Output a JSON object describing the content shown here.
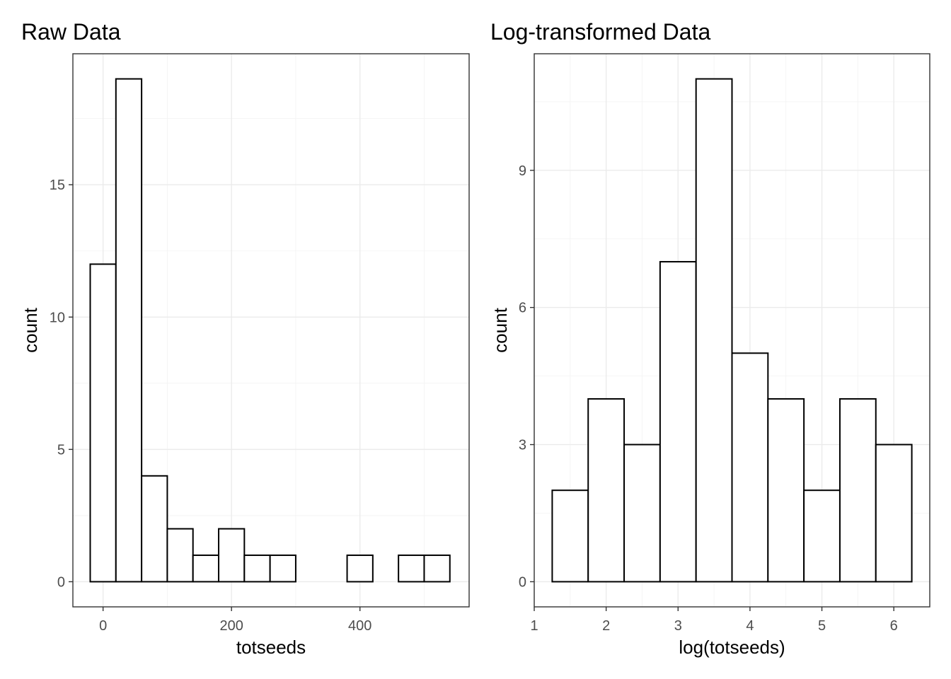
{
  "chart_data": [
    {
      "type": "bar",
      "title": "Raw Data",
      "xlabel": "totseeds",
      "ylabel": "count",
      "bins": [
        {
          "x0": -20,
          "x1": 20,
          "count": 12
        },
        {
          "x0": 20,
          "x1": 60,
          "count": 19
        },
        {
          "x0": 60,
          "x1": 100,
          "count": 4
        },
        {
          "x0": 100,
          "x1": 140,
          "count": 2
        },
        {
          "x0": 140,
          "x1": 180,
          "count": 1
        },
        {
          "x0": 180,
          "x1": 220,
          "count": 2
        },
        {
          "x0": 220,
          "x1": 260,
          "count": 1
        },
        {
          "x0": 260,
          "x1": 300,
          "count": 1
        },
        {
          "x0": 300,
          "x1": 340,
          "count": 0
        },
        {
          "x0": 340,
          "x1": 380,
          "count": 0
        },
        {
          "x0": 380,
          "x1": 420,
          "count": 1
        },
        {
          "x0": 420,
          "x1": 460,
          "count": 0
        },
        {
          "x0": 460,
          "x1": 500,
          "count": 1
        },
        {
          "x0": 500,
          "x1": 540,
          "count": 1
        }
      ],
      "xlim": [
        -47,
        570
      ],
      "ylim": [
        -0.95,
        19.95
      ],
      "xticks": [
        0,
        200,
        400
      ],
      "xtick_labels": [
        "0",
        "200",
        "400"
      ],
      "xminor": [
        100,
        300,
        500
      ],
      "yticks": [
        0,
        5,
        10,
        15
      ],
      "ytick_labels": [
        "0",
        "5",
        "10",
        "15"
      ],
      "yminor": [
        2.5,
        7.5,
        12.5,
        17.5
      ],
      "grid": true
    },
    {
      "type": "bar",
      "title": "Log-transformed Data",
      "xlabel": "log(totseeds)",
      "ylabel": "count",
      "bins": [
        {
          "x0": 1.25,
          "x1": 1.75,
          "count": 2
        },
        {
          "x0": 1.75,
          "x1": 2.25,
          "count": 4
        },
        {
          "x0": 2.25,
          "x1": 2.75,
          "count": 3
        },
        {
          "x0": 2.75,
          "x1": 3.25,
          "count": 7
        },
        {
          "x0": 3.25,
          "x1": 3.75,
          "count": 11
        },
        {
          "x0": 3.75,
          "x1": 4.25,
          "count": 5
        },
        {
          "x0": 4.25,
          "x1": 4.75,
          "count": 4
        },
        {
          "x0": 4.75,
          "x1": 5.25,
          "count": 2
        },
        {
          "x0": 5.25,
          "x1": 5.75,
          "count": 4
        },
        {
          "x0": 5.75,
          "x1": 6.25,
          "count": 3
        }
      ],
      "xlim": [
        1.0,
        6.5
      ],
      "ylim": [
        -0.55,
        11.55
      ],
      "xticks": [
        1,
        2,
        3,
        4,
        5,
        6
      ],
      "xtick_labels": [
        "1",
        "2",
        "3",
        "4",
        "5",
        "6"
      ],
      "xminor": [
        1.5,
        2.5,
        3.5,
        4.5,
        5.5
      ],
      "yticks": [
        0,
        3,
        6,
        9
      ],
      "ytick_labels": [
        "0",
        "3",
        "6",
        "9"
      ],
      "yminor": [
        1.5,
        4.5,
        7.5,
        10.5
      ],
      "grid": true
    }
  ]
}
